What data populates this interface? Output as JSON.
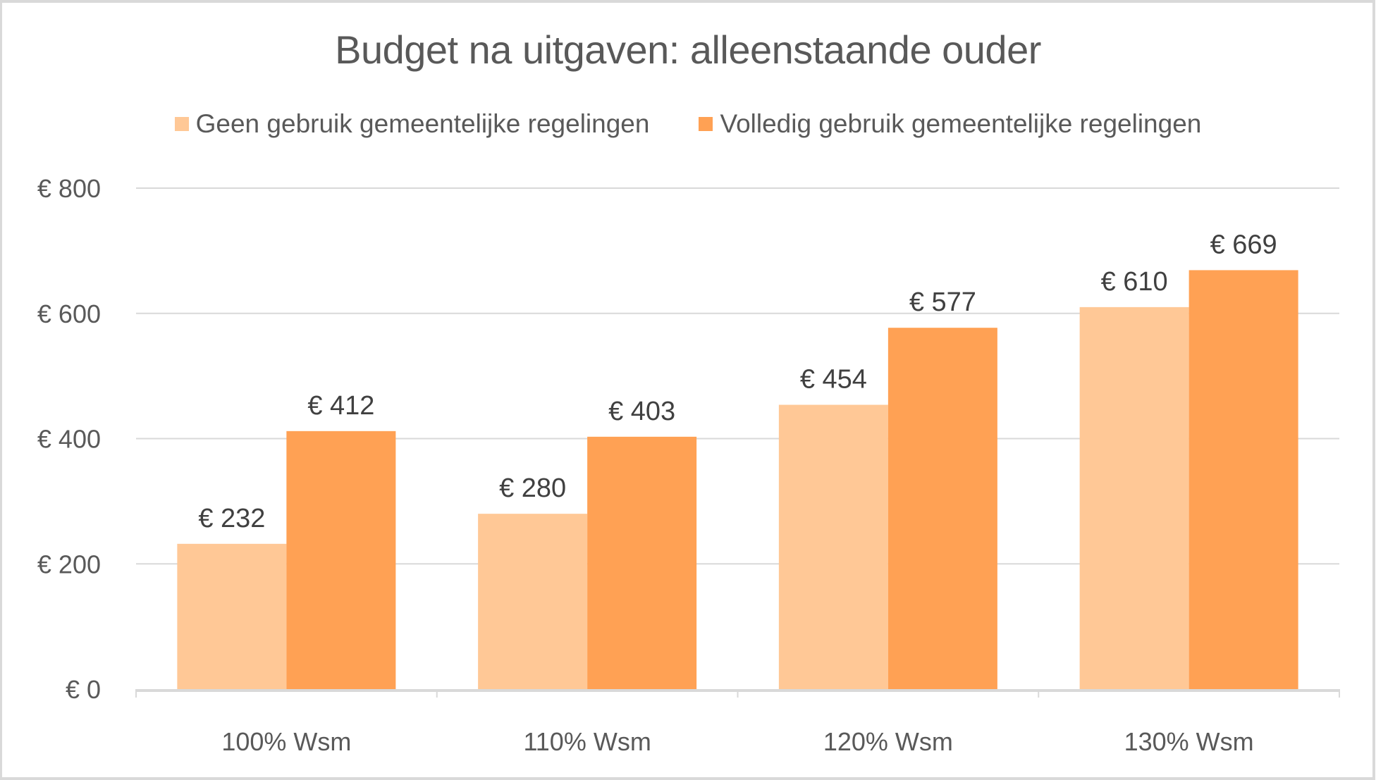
{
  "chart_data": {
    "type": "bar",
    "title": "Budget na uitgaven: alleenstaande ouder",
    "xlabel": "",
    "ylabel": "",
    "categories": [
      "100% Wsm",
      "110% Wsm",
      "120% Wsm",
      "130% Wsm"
    ],
    "series": [
      {
        "name": "Geen gebruik gemeentelijke regelingen",
        "color": "#FFC896",
        "values": [
          232,
          280,
          454,
          610
        ],
        "labels": [
          "€ 232",
          "€ 280",
          "€ 454",
          "€ 610"
        ]
      },
      {
        "name": "Volledig gebruik gemeentelijke regelingen",
        "color": "#FFA154",
        "values": [
          412,
          403,
          577,
          669
        ],
        "labels": [
          "€ 412",
          "€ 403",
          "€ 577",
          "€ 669"
        ]
      }
    ],
    "ylim": [
      0,
      800
    ],
    "yticks": [
      0,
      200,
      400,
      600,
      800
    ],
    "ytick_labels": [
      "€ 0",
      "€ 200",
      "€ 400",
      "€ 600",
      "€ 800"
    ],
    "grid": true,
    "legend_position": "top"
  }
}
